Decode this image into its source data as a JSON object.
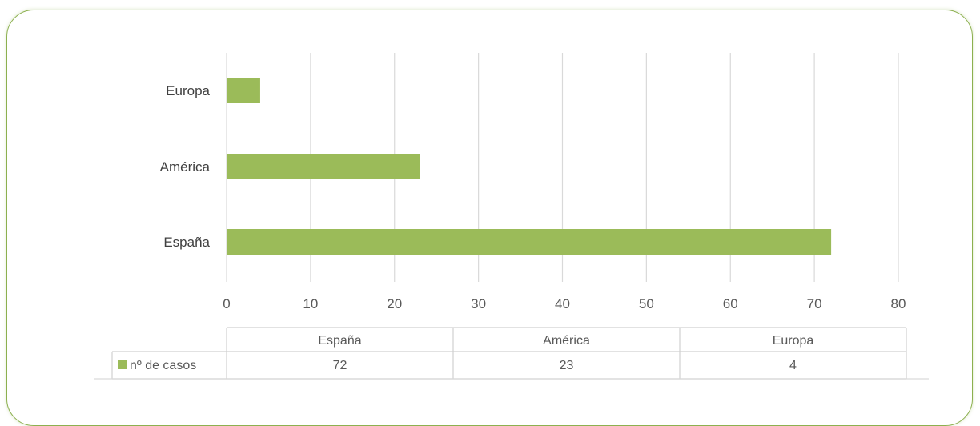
{
  "chart_data": {
    "type": "bar",
    "orientation": "horizontal",
    "categories": [
      "España",
      "América",
      "Europa"
    ],
    "series": [
      {
        "name": "nº de casos",
        "values": [
          72,
          23,
          4
        ]
      }
    ],
    "xlim": [
      0,
      80
    ],
    "x_ticks": [
      "0",
      "10",
      "20",
      "30",
      "40",
      "50",
      "60",
      "70",
      "80"
    ],
    "grid": true,
    "data_table": true,
    "colors": {
      "bar": "#9bbb59",
      "grid": "#d9d9d9",
      "frame": "#8cb04f"
    }
  }
}
